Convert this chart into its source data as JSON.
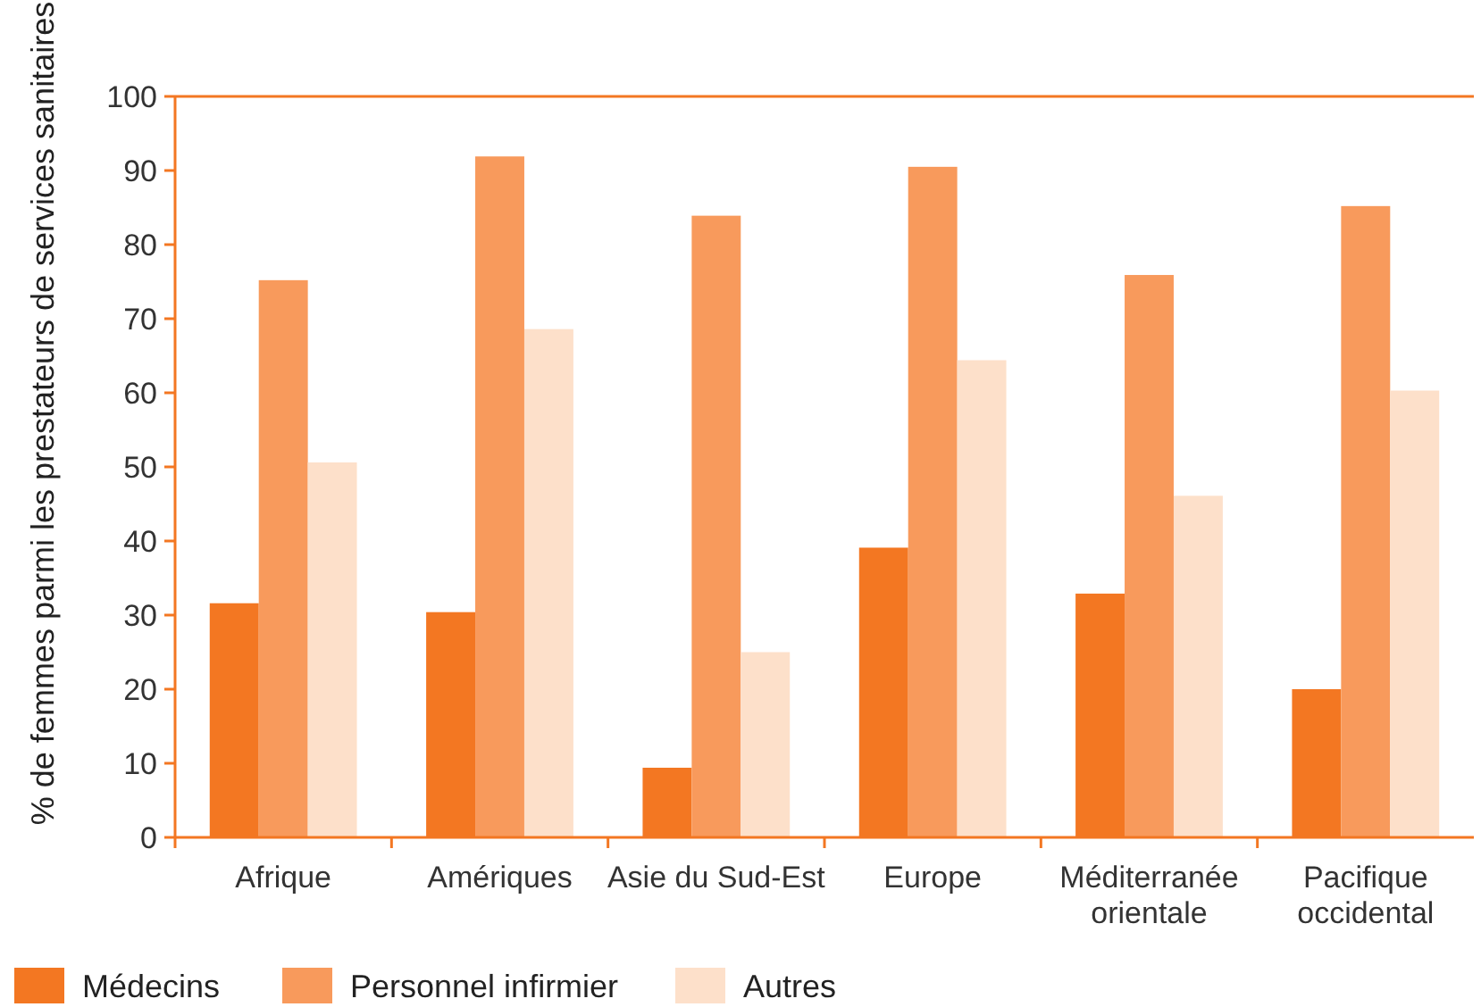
{
  "chart_data": {
    "type": "bar",
    "ylabel": "% de femmes parmi les prestateurs de services sanitaires",
    "categories": [
      "Afrique",
      "Amériques",
      "Asie du Sud-Est",
      "Europe",
      "Méditerranée\norientale",
      "Pacifique\noccidental"
    ],
    "series": [
      {
        "name": "Médecins",
        "color": "#f37722",
        "values": [
          31.6,
          30.4,
          9.4,
          39.1,
          32.9,
          20
        ]
      },
      {
        "name": "Personnel infirmier",
        "color": "#f89a5c",
        "values": [
          75.2,
          91.9,
          83.9,
          90.5,
          75.9,
          85.2
        ]
      },
      {
        "name": "Autres",
        "color": "#fde0ca",
        "values": [
          50.6,
          68.6,
          25,
          64.4,
          46.1,
          60.3
        ]
      }
    ],
    "ylim": [
      0,
      100
    ],
    "yticks": [
      0,
      10,
      20,
      30,
      40,
      50,
      60,
      70,
      80,
      90,
      100
    ],
    "legend": "bottom left"
  }
}
